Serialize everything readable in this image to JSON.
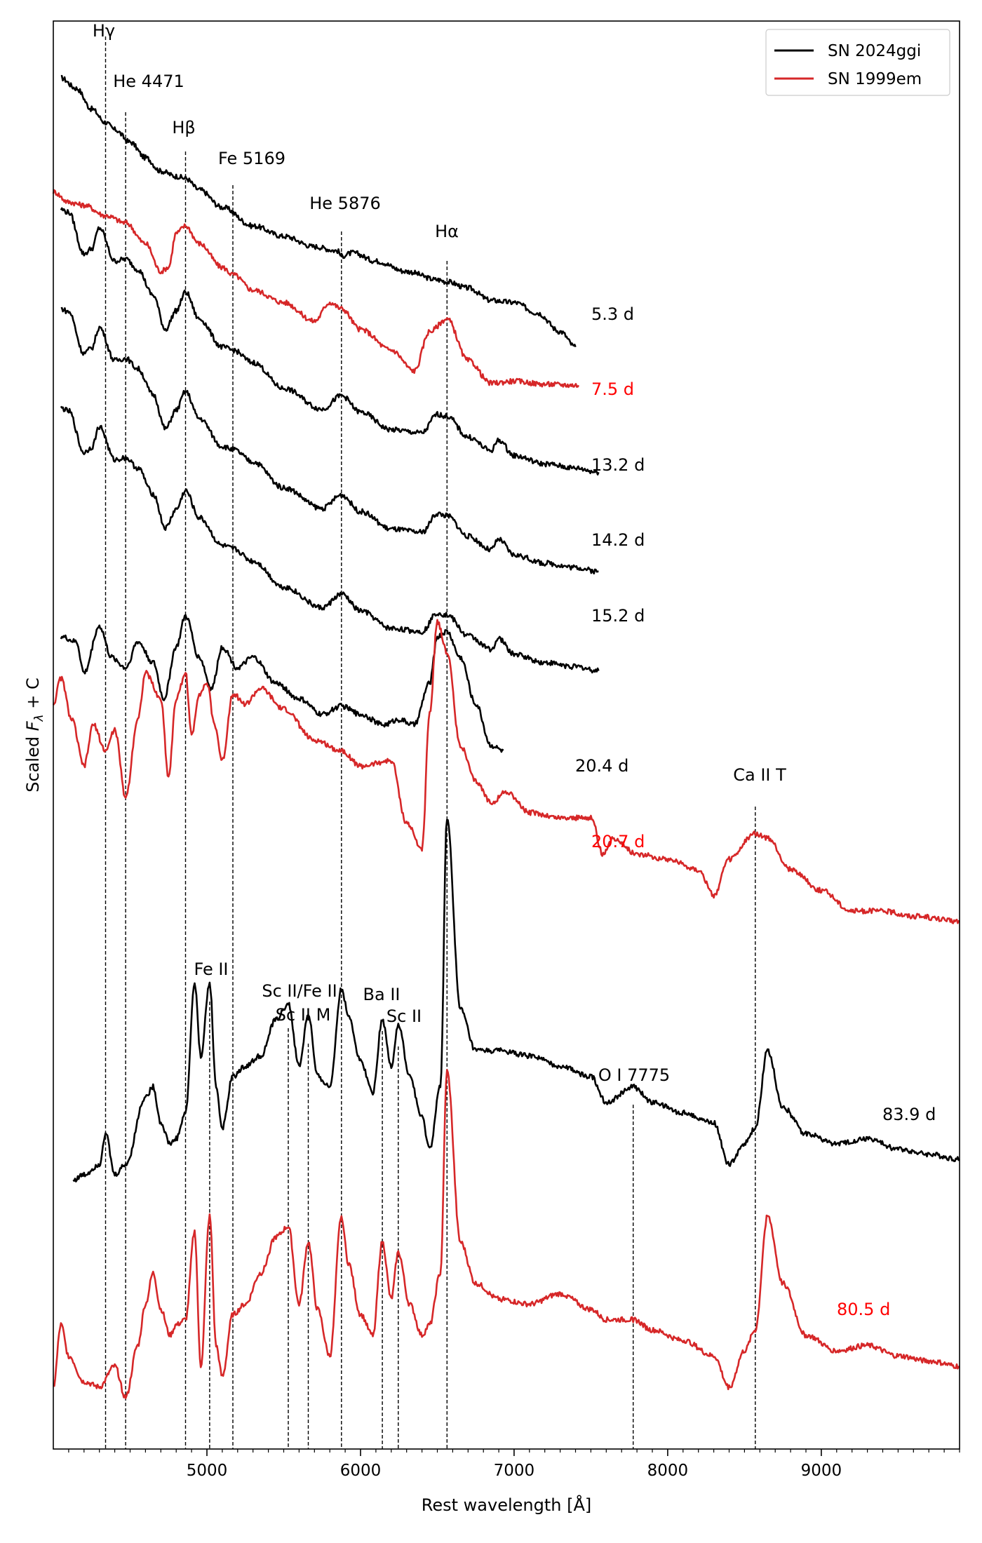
{
  "chart_data": {
    "type": "line",
    "xlabel": "Rest wavelength [Å]",
    "ylabel": "Scaled F_λ + C",
    "xlim": [
      4000,
      9900
    ],
    "x_ticks": [
      5000,
      6000,
      7000,
      8000,
      9000
    ],
    "grid": false,
    "legend_position": "top-right",
    "legend": [
      {
        "label": "SN 2024ggi",
        "color": "#000000"
      },
      {
        "label": "SN 1999em",
        "color": "#d62728"
      }
    ],
    "line_markers": [
      {
        "label": "Hγ",
        "x": 4340
      },
      {
        "label": "He 4471",
        "x": 4471
      },
      {
        "label": "Hβ",
        "x": 4861
      },
      {
        "label": "Fe 5169",
        "x": 5169
      },
      {
        "label": "He 5876",
        "x": 5876
      },
      {
        "label": "Hα",
        "x": 6563
      },
      {
        "label": "Ca II T",
        "x": 8570
      },
      {
        "label": "Fe II",
        "x": 5018
      },
      {
        "label": "Sc II/Fe II",
        "x": 5530
      },
      {
        "label": "Sc II M",
        "x": 5660
      },
      {
        "label": "Ba II",
        "x": 6142
      },
      {
        "label": "Sc II",
        "x": 6246
      },
      {
        "label": "O I 7775",
        "x": 7775
      }
    ],
    "series": [
      {
        "name": "SN 2024ggi",
        "epoch": "5.3 d",
        "color": "#000000",
        "x_range": [
          4050,
          7400
        ],
        "offset": 0.0,
        "x": [
          4050,
          4150,
          4250,
          4340,
          4400,
          4500,
          4600,
          4700,
          4800,
          4861,
          4950,
          5100,
          5300,
          5500,
          5700,
          5850,
          5876,
          5950,
          6100,
          6300,
          6500,
          6563,
          6700,
          6850,
          7000,
          7150,
          7300,
          7400
        ],
        "y": [
          11.05,
          10.95,
          10.75,
          10.62,
          10.55,
          10.43,
          10.28,
          10.15,
          10.1,
          10.08,
          9.97,
          9.8,
          9.62,
          9.52,
          9.42,
          9.38,
          9.33,
          9.36,
          9.28,
          9.18,
          9.1,
          9.08,
          9.02,
          8.9,
          8.88,
          8.78,
          8.6,
          8.45
        ]
      },
      {
        "name": "SN 1999em",
        "epoch": "7.5 d",
        "color": "#d62728",
        "x_range": [
          4000,
          7420
        ],
        "offset": 0.0,
        "x": [
          4000,
          4100,
          4200,
          4340,
          4471,
          4600,
          4700,
          4750,
          4800,
          4861,
          4950,
          5100,
          5169,
          5300,
          5500,
          5700,
          5800,
          5876,
          6000,
          6200,
          6350,
          6450,
          6563,
          6700,
          6850,
          7000,
          7200,
          7420
        ],
        "y": [
          9.95,
          9.85,
          9.82,
          9.72,
          9.65,
          9.45,
          9.18,
          9.22,
          9.55,
          9.62,
          9.45,
          9.22,
          9.15,
          9.0,
          8.88,
          8.7,
          8.88,
          8.82,
          8.62,
          8.42,
          8.22,
          8.6,
          8.72,
          8.32,
          8.1,
          8.12,
          8.09,
          8.08
        ]
      },
      {
        "name": "SN 2024ggi",
        "epoch": "13.2 d",
        "color": "#000000",
        "x_range": [
          4050,
          7550
        ],
        "offset": 0.0,
        "x": [
          4050,
          4100,
          4200,
          4250,
          4300,
          4400,
          4471,
          4550,
          4650,
          4730,
          4800,
          4861,
          4950,
          5100,
          5169,
          5300,
          5500,
          5750,
          5876,
          6000,
          6200,
          6400,
          6500,
          6563,
          6700,
          6850,
          6900,
          7000,
          7200,
          7400,
          7550
        ],
        "y": [
          9.78,
          9.75,
          9.35,
          9.4,
          9.6,
          9.28,
          9.3,
          9.2,
          8.95,
          8.62,
          8.8,
          8.98,
          8.72,
          8.45,
          8.42,
          8.3,
          8.05,
          7.85,
          7.98,
          7.82,
          7.65,
          7.62,
          7.8,
          7.78,
          7.58,
          7.45,
          7.55,
          7.4,
          7.32,
          7.28,
          7.24
        ]
      },
      {
        "name": "SN 2024ggi",
        "epoch": "14.2 d",
        "color": "#000000",
        "x_range": [
          4050,
          7550
        ],
        "offset": 0.0,
        "x": [
          4050,
          4100,
          4200,
          4250,
          4300,
          4400,
          4471,
          4550,
          4650,
          4730,
          4800,
          4861,
          4950,
          5100,
          5169,
          5300,
          5500,
          5750,
          5876,
          6000,
          6200,
          6400,
          6500,
          6563,
          6700,
          6850,
          6900,
          7000,
          7200,
          7400,
          7550
        ],
        "y": [
          8.82,
          8.79,
          8.39,
          8.44,
          8.64,
          8.32,
          8.34,
          8.24,
          7.99,
          7.66,
          7.84,
          8.02,
          7.76,
          7.49,
          7.46,
          7.34,
          7.09,
          6.89,
          7.02,
          6.86,
          6.69,
          6.66,
          6.84,
          6.82,
          6.62,
          6.49,
          6.59,
          6.44,
          6.36,
          6.32,
          6.28
        ]
      },
      {
        "name": "SN 2024ggi",
        "epoch": "15.2 d",
        "color": "#000000",
        "x_range": [
          4050,
          7550
        ],
        "offset": 0.0,
        "x": [
          4050,
          4100,
          4200,
          4250,
          4300,
          4400,
          4471,
          4550,
          4650,
          4730,
          4800,
          4861,
          4950,
          5100,
          5169,
          5300,
          5500,
          5750,
          5876,
          6000,
          6200,
          6400,
          6500,
          6563,
          6700,
          6850,
          6900,
          7000,
          7200,
          7400,
          7550
        ],
        "y": [
          7.86,
          7.83,
          7.43,
          7.48,
          7.68,
          7.36,
          7.38,
          7.28,
          7.03,
          6.7,
          6.88,
          7.06,
          6.8,
          6.53,
          6.5,
          6.38,
          6.13,
          5.93,
          6.06,
          5.9,
          5.73,
          5.7,
          5.88,
          5.86,
          5.66,
          5.53,
          5.63,
          5.48,
          5.4,
          5.36,
          5.32
        ]
      },
      {
        "name": "SN 2024ggi",
        "epoch": "20.4 d",
        "color": "#000000",
        "x_range": [
          4050,
          6930
        ],
        "offset": 0.0,
        "x": [
          4050,
          4150,
          4200,
          4300,
          4380,
          4471,
          4550,
          4650,
          4720,
          4800,
          4861,
          4950,
          5030,
          5100,
          5200,
          5300,
          5450,
          5600,
          5750,
          5876,
          6000,
          6150,
          6250,
          6350,
          6450,
          6500,
          6563,
          6650,
          6750,
          6850,
          6930
        ],
        "y": [
          5.65,
          5.6,
          5.3,
          5.75,
          5.45,
          5.35,
          5.6,
          5.4,
          5.05,
          5.55,
          5.85,
          5.45,
          5.15,
          5.55,
          5.35,
          5.45,
          5.2,
          5.05,
          4.9,
          4.98,
          4.9,
          4.8,
          4.85,
          4.8,
          5.2,
          5.65,
          5.7,
          5.45,
          5.0,
          4.6,
          4.55
        ]
      },
      {
        "name": "SN 1999em",
        "epoch": "20.7 d",
        "color": "#d62728",
        "x_range": [
          4000,
          9900
        ],
        "offset": 0.0,
        "x": [
          4000,
          4050,
          4120,
          4200,
          4260,
          4340,
          4400,
          4471,
          4550,
          4600,
          4700,
          4750,
          4800,
          4861,
          4900,
          4950,
          5000,
          5050,
          5100,
          5169,
          5250,
          5350,
          5500,
          5700,
          5876,
          6000,
          6200,
          6300,
          6400,
          6450,
          6500,
          6563,
          6650,
          6750,
          6850,
          6950,
          7100,
          7300,
          7500,
          7580,
          7650,
          7800,
          8000,
          8200,
          8300,
          8400,
          8570,
          8650,
          8800,
          9000,
          9200,
          9400,
          9600,
          9900
        ],
        "y": [
          5.0,
          5.25,
          4.85,
          4.4,
          4.8,
          4.55,
          4.75,
          4.1,
          4.85,
          5.3,
          5.05,
          4.3,
          5.05,
          5.3,
          4.7,
          5.1,
          5.2,
          4.8,
          4.45,
          5.1,
          5.0,
          5.15,
          4.95,
          4.65,
          4.55,
          4.4,
          4.45,
          3.85,
          3.6,
          4.9,
          5.8,
          5.5,
          4.6,
          4.25,
          4.05,
          4.15,
          3.95,
          3.9,
          3.9,
          3.55,
          3.7,
          3.55,
          3.5,
          3.4,
          3.15,
          3.5,
          3.75,
          3.7,
          3.4,
          3.2,
          3.0,
          3.0,
          2.95,
          2.9
        ]
      },
      {
        "name": "SN 2024ggi",
        "epoch": "83.9 d",
        "color": "#000000",
        "x_range": [
          4130,
          9900
        ],
        "offset": 0.0,
        "x": [
          4130,
          4200,
          4300,
          4340,
          4400,
          4471,
          4600,
          4650,
          4700,
          4760,
          4800,
          4861,
          4920,
          4960,
          5018,
          5060,
          5100,
          5169,
          5250,
          5350,
          5450,
          5530,
          5600,
          5660,
          5720,
          5800,
          5876,
          5920,
          6000,
          6080,
          6142,
          6200,
          6246,
          6320,
          6400,
          6450,
          6520,
          6563,
          6650,
          6750,
          6900,
          7100,
          7300,
          7500,
          7600,
          7775,
          7900,
          8100,
          8300,
          8400,
          8500,
          8570,
          8650,
          8750,
          8900,
          9100,
          9300,
          9500,
          9700,
          9900
        ],
        "y": [
          0.4,
          0.45,
          0.55,
          0.85,
          0.45,
          0.55,
          1.2,
          1.3,
          0.95,
          0.75,
          0.8,
          1.05,
          2.3,
          1.6,
          2.3,
          1.3,
          0.9,
          1.4,
          1.5,
          1.6,
          1.95,
          2.1,
          1.5,
          2.0,
          1.4,
          1.3,
          2.25,
          2.0,
          1.55,
          1.25,
          1.95,
          1.5,
          1.9,
          1.4,
          1.0,
          0.7,
          1.3,
          3.9,
          2.05,
          1.65,
          1.65,
          1.6,
          1.5,
          1.4,
          1.15,
          1.3,
          1.15,
          1.05,
          0.95,
          0.55,
          0.75,
          0.9,
          1.65,
          1.1,
          0.85,
          0.75,
          0.8,
          0.7,
          0.65,
          0.6
        ]
      },
      {
        "name": "SN 1999em",
        "epoch": "80.5 d",
        "color": "#d62728",
        "x_range": [
          4000,
          9900
        ],
        "offset": 0.0,
        "x": [
          4000,
          4050,
          4100,
          4200,
          4300,
          4400,
          4471,
          4550,
          4600,
          4650,
          4700,
          4760,
          4800,
          4861,
          4920,
          4960,
          5018,
          5060,
          5100,
          5169,
          5250,
          5350,
          5450,
          5530,
          5600,
          5660,
          5720,
          5800,
          5876,
          5920,
          6000,
          6080,
          6142,
          6200,
          6246,
          6320,
          6400,
          6450,
          6520,
          6563,
          6650,
          6750,
          6900,
          7100,
          7300,
          7500,
          7600,
          7775,
          7900,
          8100,
          8300,
          8400,
          8500,
          8570,
          8650,
          8750,
          8900,
          9100,
          9300,
          9500,
          9700,
          9900
        ],
        "y": [
          -1.6,
          -1.0,
          -1.3,
          -1.55,
          -1.6,
          -1.4,
          -1.7,
          -1.2,
          -0.8,
          -0.5,
          -0.85,
          -1.1,
          -1.0,
          -0.95,
          -0.1,
          -1.4,
          0.05,
          -1.2,
          -1.5,
          -0.9,
          -0.8,
          -0.5,
          -0.15,
          -0.05,
          -0.8,
          -0.2,
          -0.85,
          -1.3,
          0.05,
          -0.4,
          -0.9,
          -1.1,
          -0.2,
          -0.75,
          -0.3,
          -0.8,
          -1.1,
          -1.0,
          -0.5,
          1.45,
          -0.2,
          -0.6,
          -0.75,
          -0.8,
          -0.7,
          -0.85,
          -0.95,
          -0.95,
          -1.05,
          -1.15,
          -1.3,
          -1.6,
          -1.25,
          -1.05,
          0.05,
          -0.6,
          -1.1,
          -1.25,
          -1.2,
          -1.3,
          -1.35,
          -1.4
        ]
      }
    ],
    "epoch_labels": [
      {
        "text": "5.3 d",
        "color": "#000000"
      },
      {
        "text": "7.5 d",
        "color": "#ff0000"
      },
      {
        "text": "13.2 d",
        "color": "#000000"
      },
      {
        "text": "14.2 d",
        "color": "#000000"
      },
      {
        "text": "15.2 d",
        "color": "#000000"
      },
      {
        "text": "20.4 d",
        "color": "#000000"
      },
      {
        "text": "20.7 d",
        "color": "#ff0000"
      },
      {
        "text": "83.9 d",
        "color": "#000000"
      },
      {
        "text": "80.5 d",
        "color": "#ff0000"
      }
    ]
  }
}
